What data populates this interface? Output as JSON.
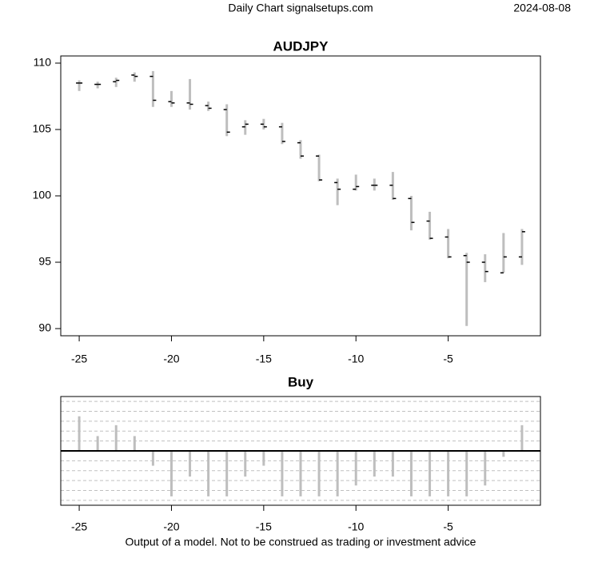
{
  "header": {
    "title": "Daily Chart signalsetups.com",
    "date": "2024-08-08"
  },
  "footer": "Output of a model. Not to be construed as trading or investment advice",
  "chart_data": [
    {
      "type": "ohlc",
      "title": "AUDJPY",
      "x": [
        -25,
        -24,
        -23,
        -22,
        -21,
        -20,
        -19,
        -18,
        -17,
        -16,
        -15,
        -14,
        -13,
        -12,
        -11,
        -10,
        -9,
        -8,
        -7,
        -6,
        -5,
        -4,
        -3,
        -2,
        -1
      ],
      "open": [
        108.5,
        108.4,
        108.6,
        109.1,
        109.0,
        107.1,
        107.0,
        106.8,
        106.5,
        105.2,
        105.4,
        105.2,
        104.0,
        103.0,
        101.0,
        100.5,
        100.8,
        100.8,
        99.8,
        98.1,
        96.9,
        95.5,
        95.0,
        94.2,
        95.4
      ],
      "high": [
        108.7,
        108.6,
        108.9,
        109.3,
        109.4,
        107.9,
        108.8,
        107.1,
        106.9,
        105.7,
        105.8,
        105.5,
        104.2,
        103.1,
        101.3,
        101.6,
        101.3,
        101.8,
        100.0,
        98.8,
        97.5,
        95.7,
        95.6,
        97.2,
        97.5
      ],
      "low": [
        107.9,
        108.1,
        108.2,
        108.6,
        106.7,
        106.7,
        106.5,
        106.4,
        104.5,
        104.6,
        105.0,
        103.9,
        102.8,
        101.1,
        99.3,
        100.4,
        100.4,
        99.7,
        97.4,
        96.7,
        95.3,
        90.2,
        93.5,
        94.2,
        94.8
      ],
      "close": [
        108.5,
        108.4,
        108.7,
        109.0,
        107.2,
        107.0,
        106.9,
        106.6,
        104.8,
        105.4,
        105.2,
        104.1,
        103.0,
        101.2,
        100.5,
        100.7,
        100.8,
        99.8,
        98.0,
        96.8,
        95.4,
        95.0,
        94.3,
        95.4,
        97.3
      ],
      "range_color": "#bebebe",
      "tick_color": "#000000",
      "xlim": [
        -26,
        0
      ],
      "xticks": [
        -25,
        -20,
        -15,
        -10,
        -5
      ],
      "ylim": [
        89.46,
        110.54
      ],
      "yticks": [
        90,
        95,
        100,
        105,
        110
      ]
    },
    {
      "type": "bar",
      "title": "Buy",
      "x": [
        -25,
        -24,
        -23,
        -22,
        -21,
        -20,
        -19,
        -18,
        -17,
        -16,
        -15,
        -14,
        -13,
        -12,
        -11,
        -10,
        -9,
        -8,
        -7,
        -6,
        -5,
        -4,
        -3,
        -2,
        -1
      ],
      "values": [
        3.5,
        1.5,
        2.6,
        1.5,
        -1.5,
        -4.6,
        -2.6,
        -4.6,
        -4.6,
        -2.6,
        -1.5,
        -4.6,
        -4.6,
        -4.6,
        -4.6,
        -3.5,
        -2.6,
        -2.6,
        -4.6,
        -4.6,
        -4.6,
        -4.6,
        -3.5,
        -0.6,
        2.6
      ],
      "color": "#bebebe",
      "xlim": [
        -26,
        0
      ],
      "xticks": [
        -25,
        -20,
        -15,
        -10,
        -5
      ],
      "ylim": [
        -5.5,
        5.5
      ],
      "gridlines": [
        -5,
        -4,
        -3,
        -2,
        -1,
        1,
        2,
        3,
        4,
        5
      ],
      "grid": true
    }
  ]
}
